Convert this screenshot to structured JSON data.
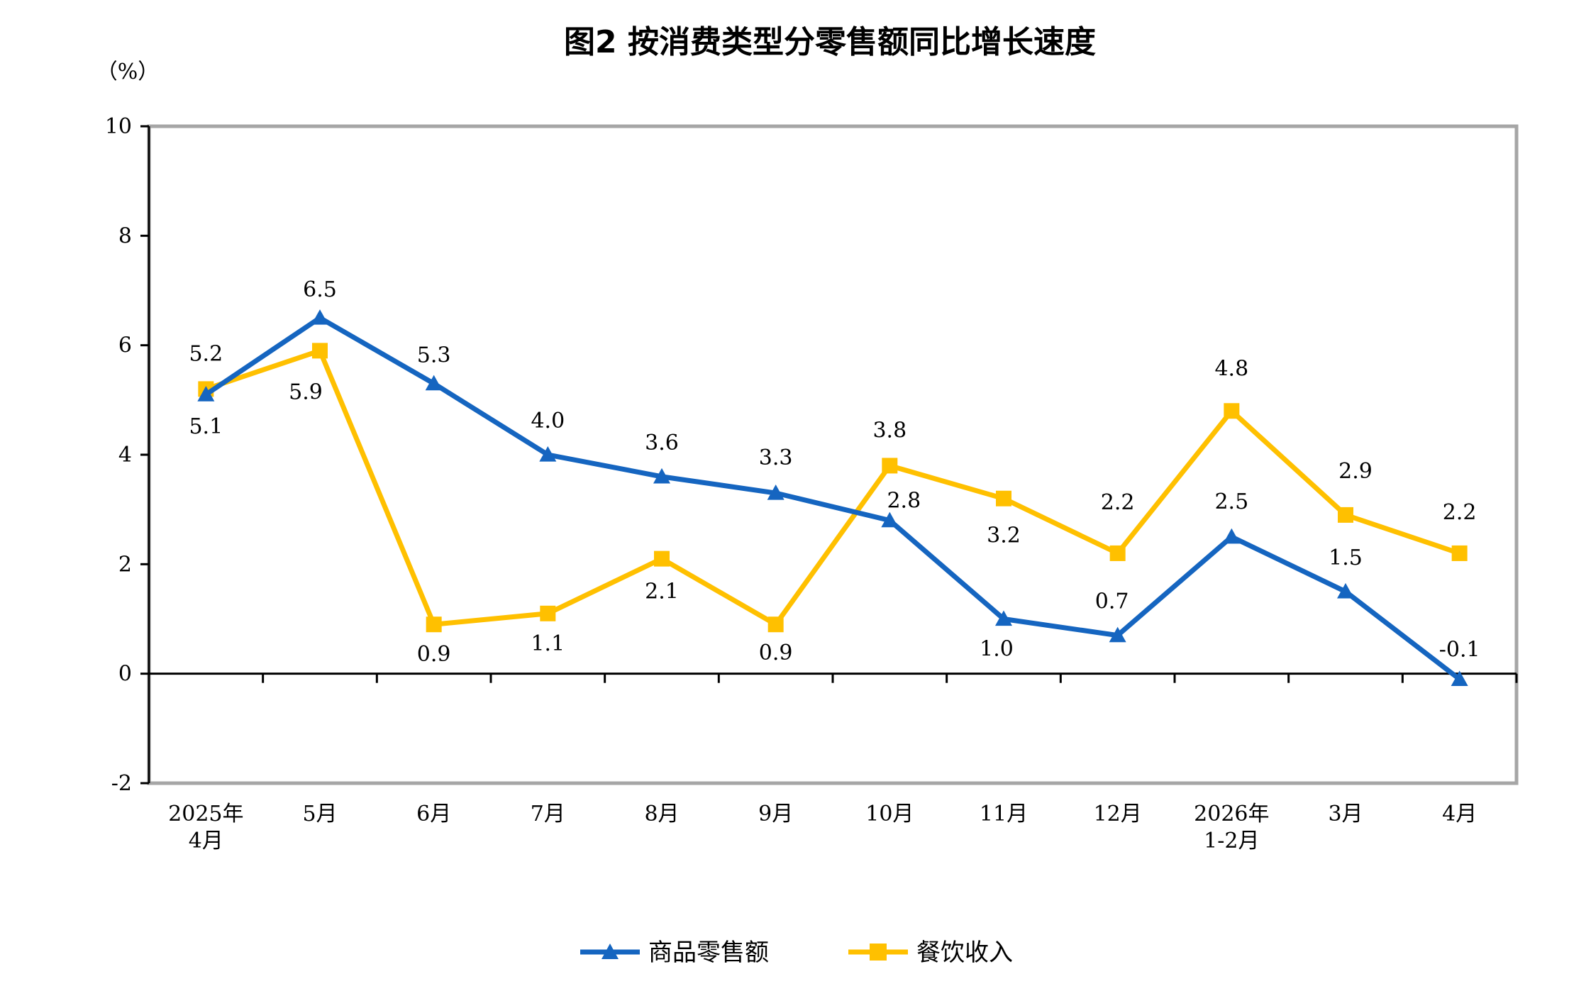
{
  "chart_data": {
    "type": "line",
    "title": "图2 按消费类型分零售额同比增长速度",
    "y_unit_label": "（%）",
    "ylim": [
      -2,
      10
    ],
    "yticks": [
      -2,
      0,
      2,
      4,
      6,
      8,
      10
    ],
    "grid": false,
    "legend_position": "bottom-center",
    "categories": [
      [
        "2025年",
        "4月"
      ],
      [
        "5月"
      ],
      [
        "6月"
      ],
      [
        "7月"
      ],
      [
        "8月"
      ],
      [
        "9月"
      ],
      [
        "10月"
      ],
      [
        "11月"
      ],
      [
        "12月"
      ],
      [
        "2026年",
        "1-2月"
      ],
      [
        "3月"
      ],
      [
        "4月"
      ]
    ],
    "series": [
      {
        "name": "商品零售额",
        "color": "#1565C0",
        "marker": "triangle",
        "values": [
          5.1,
          6.5,
          5.3,
          4.0,
          3.6,
          3.3,
          2.8,
          1.0,
          0.7,
          2.5,
          1.5,
          -0.1
        ],
        "labels": [
          "5.1",
          "6.5",
          "5.3",
          "4.0",
          "3.6",
          "3.3",
          "2.8",
          "1.0",
          "0.7",
          "2.5",
          "1.5",
          "-0.1"
        ]
      },
      {
        "name": "餐饮收入",
        "color": "#FFC000",
        "marker": "square",
        "values": [
          5.2,
          5.9,
          0.9,
          1.1,
          2.1,
          0.9,
          3.8,
          3.2,
          2.2,
          4.8,
          2.9,
          2.2
        ],
        "labels": [
          "5.2",
          "5.9",
          "0.9",
          "1.1",
          "2.1",
          "0.9",
          "3.8",
          "3.2",
          "2.2",
          "4.8",
          "2.9",
          "2.2"
        ]
      }
    ]
  }
}
